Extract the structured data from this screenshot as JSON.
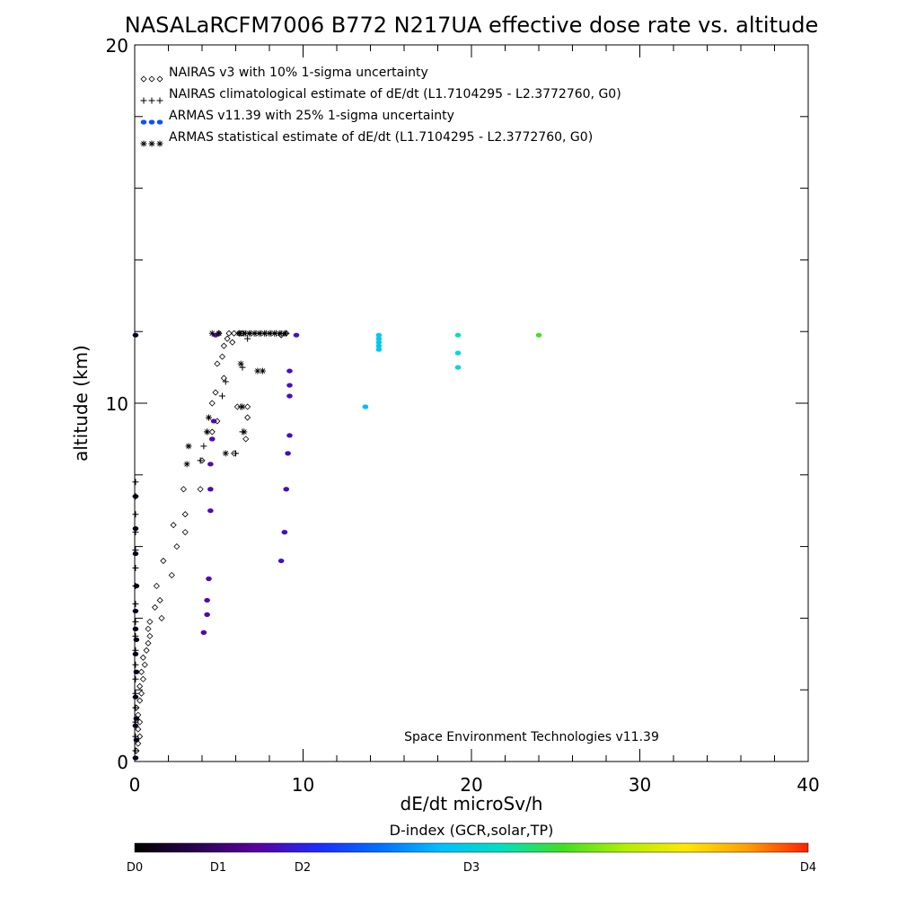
{
  "chart_data": {
    "type": "scatter",
    "title": "NASALaRCFM7006  B772 N217UA effective dose rate vs. altitude",
    "xlabel": "dE/dt microSv/h",
    "ylabel": "altitude (km)",
    "xlim": [
      0,
      40
    ],
    "ylim": [
      0,
      20
    ],
    "x_ticks": [
      "0",
      "10",
      "20",
      "30",
      "40"
    ],
    "y_ticks": [
      "0",
      "10",
      "20"
    ],
    "grid": false,
    "legend_position": "top-left",
    "annotation": "Space Environment Technologies v11.39",
    "colorbar": {
      "title": "D-index (GCR,solar,TP)",
      "labels": [
        {
          "label": "D0",
          "value": 0
        },
        {
          "label": "D1",
          "value": 1
        },
        {
          "label": "D2",
          "value": 2
        },
        {
          "label": "D3",
          "value": 3
        },
        {
          "label": "D4",
          "value": 4
        }
      ],
      "stops": [
        "#000000",
        "#2a0050",
        "#5a00a0",
        "#1e2bff",
        "#0070ff",
        "#00c0ff",
        "#00e0c0",
        "#40e020",
        "#b0f000",
        "#ffe800",
        "#ffa000",
        "#ff2000"
      ]
    },
    "series": [
      {
        "name": "NAIRAS v3 with 10% 1-sigma uncertainty",
        "marker": "diamond",
        "color": "#000000",
        "points": [
          [
            0.1,
            0.3
          ],
          [
            0.2,
            0.5
          ],
          [
            0.3,
            0.7
          ],
          [
            0.2,
            0.9
          ],
          [
            0.3,
            1.1
          ],
          [
            0.2,
            1.3
          ],
          [
            0.1,
            1.5
          ],
          [
            0.3,
            1.7
          ],
          [
            0.4,
            1.9
          ],
          [
            0.3,
            2.1
          ],
          [
            0.5,
            2.3
          ],
          [
            0.4,
            2.5
          ],
          [
            0.6,
            2.7
          ],
          [
            0.5,
            2.9
          ],
          [
            0.7,
            3.1
          ],
          [
            0.8,
            3.3
          ],
          [
            0.9,
            3.5
          ],
          [
            0.8,
            3.7
          ],
          [
            0.9,
            3.9
          ],
          [
            1.6,
            4.0
          ],
          [
            1.2,
            4.3
          ],
          [
            1.5,
            4.5
          ],
          [
            1.3,
            4.9
          ],
          [
            2.2,
            5.2
          ],
          [
            1.7,
            5.6
          ],
          [
            2.5,
            6.0
          ],
          [
            3.0,
            6.4
          ],
          [
            2.3,
            6.6
          ],
          [
            3.0,
            6.9
          ],
          [
            2.9,
            7.6
          ],
          [
            3.9,
            7.6
          ],
          [
            4.0,
            8.4
          ],
          [
            4.6,
            9.2
          ],
          [
            4.9,
            9.5
          ],
          [
            4.6,
            10.0
          ],
          [
            4.8,
            10.3
          ],
          [
            5.3,
            10.7
          ],
          [
            4.9,
            11.1
          ],
          [
            5.2,
            11.3
          ],
          [
            5.3,
            11.6
          ],
          [
            5.5,
            11.8
          ],
          [
            5.6,
            11.95
          ],
          [
            5.9,
            11.95
          ],
          [
            6.2,
            11.95
          ],
          [
            6.4,
            11.95
          ],
          [
            5.0,
            11.95
          ],
          [
            5.8,
            11.7
          ],
          [
            6.7,
            9.6
          ],
          [
            5.9,
            8.6
          ],
          [
            6.6,
            9.0
          ],
          [
            6.1,
            9.9
          ],
          [
            6.7,
            9.9
          ],
          [
            8.7,
            11.9
          ],
          [
            9.0,
            11.95
          ]
        ]
      },
      {
        "name": "NAIRAS climatological estimate of dE/dt (L1.7104295 - L2.3772760, G0)",
        "marker": "plus",
        "color": "#000000",
        "points": [
          [
            0.05,
            0.3
          ],
          [
            0.05,
            0.7
          ],
          [
            0.05,
            1.1
          ],
          [
            0.05,
            1.5
          ],
          [
            0.05,
            1.9
          ],
          [
            0.05,
            2.3
          ],
          [
            0.05,
            2.7
          ],
          [
            0.05,
            3.1
          ],
          [
            0.05,
            3.5
          ],
          [
            0.05,
            3.9
          ],
          [
            0.05,
            4.4
          ],
          [
            0.05,
            4.9
          ],
          [
            0.05,
            5.4
          ],
          [
            0.05,
            5.9
          ],
          [
            0.05,
            6.4
          ],
          [
            0.05,
            6.9
          ],
          [
            0.05,
            7.4
          ],
          [
            0.05,
            7.8
          ],
          [
            3.9,
            8.4
          ],
          [
            4.1,
            8.8
          ],
          [
            4.3,
            9.2
          ],
          [
            4.4,
            9.6
          ],
          [
            5.2,
            10.2
          ],
          [
            5.4,
            10.6
          ],
          [
            6.3,
            9.9
          ],
          [
            6.4,
            9.2
          ],
          [
            6.0,
            8.6
          ],
          [
            6.4,
            11.0
          ],
          [
            6.7,
            11.8
          ],
          [
            6.3,
            11.95
          ],
          [
            6.6,
            11.95
          ],
          [
            6.9,
            11.95
          ],
          [
            7.2,
            11.95
          ],
          [
            7.5,
            11.95
          ],
          [
            7.8,
            11.95
          ],
          [
            8.1,
            11.95
          ],
          [
            8.4,
            11.95
          ],
          [
            8.7,
            11.95
          ],
          [
            9.0,
            11.95
          ]
        ]
      },
      {
        "name": "ARMAS v11.39 with 25% 1-sigma uncertainty",
        "marker": "dot",
        "color": "#0a50ff",
        "points": [
          [
            0.05,
            0.1,
            0.1
          ],
          [
            0.1,
            0.6,
            0.1
          ],
          [
            0.05,
            1.0,
            0.15
          ],
          [
            0.1,
            1.2,
            0.1
          ],
          [
            0.05,
            1.8,
            0.1
          ],
          [
            0.1,
            2.5,
            0.15
          ],
          [
            0.05,
            3.0,
            0.1
          ],
          [
            0.1,
            3.4,
            0.1
          ],
          [
            0.05,
            3.7,
            0.15
          ],
          [
            0.05,
            4.2,
            0.1
          ],
          [
            0.1,
            4.9,
            0.1
          ],
          [
            0.05,
            5.8,
            0.15
          ],
          [
            0.05,
            6.5,
            0.1
          ],
          [
            0.05,
            7.4,
            0.1
          ],
          [
            0.05,
            11.9,
            0.15
          ],
          [
            4.1,
            3.6,
            0.75
          ],
          [
            4.3,
            4.1,
            0.75
          ],
          [
            4.3,
            4.5,
            0.8
          ],
          [
            4.4,
            5.1,
            0.8
          ],
          [
            4.5,
            7.0,
            0.8
          ],
          [
            4.5,
            7.6,
            0.8
          ],
          [
            4.5,
            8.3,
            0.8
          ],
          [
            4.6,
            9.0,
            0.8
          ],
          [
            4.7,
            9.5,
            0.8
          ],
          [
            4.8,
            11.9,
            0.8
          ],
          [
            8.7,
            5.6,
            0.85
          ],
          [
            8.9,
            6.4,
            0.85
          ],
          [
            9.0,
            7.6,
            0.85
          ],
          [
            9.1,
            8.6,
            0.85
          ],
          [
            9.2,
            9.1,
            0.85
          ],
          [
            9.2,
            10.2,
            0.85
          ],
          [
            9.2,
            10.5,
            0.85
          ],
          [
            9.2,
            10.9,
            0.85
          ],
          [
            9.6,
            11.9,
            0.85
          ],
          [
            13.7,
            9.9,
            1.8
          ],
          [
            14.5,
            11.9,
            1.9
          ],
          [
            14.5,
            11.8,
            1.9
          ],
          [
            14.5,
            11.7,
            1.9
          ],
          [
            14.5,
            11.6,
            1.9
          ],
          [
            14.5,
            11.5,
            1.9
          ],
          [
            19.2,
            11.0,
            2.1
          ],
          [
            19.2,
            11.4,
            2.1
          ],
          [
            19.2,
            11.9,
            2.2
          ],
          [
            24.0,
            11.9,
            2.55
          ]
        ]
      },
      {
        "name": "ARMAS statistical estimate of dE/dt (L1.7104295 - L2.3772760, G0)",
        "marker": "asterisk",
        "color": "#000000",
        "points": [
          [
            3.2,
            8.8
          ],
          [
            3.1,
            8.3
          ],
          [
            4.3,
            9.2
          ],
          [
            4.4,
            9.6
          ],
          [
            5.4,
            8.6
          ],
          [
            6.4,
            9.9
          ],
          [
            6.5,
            9.2
          ],
          [
            7.3,
            10.9
          ],
          [
            7.6,
            10.9
          ],
          [
            6.3,
            11.1
          ],
          [
            6.2,
            11.95
          ],
          [
            6.5,
            11.95
          ],
          [
            6.8,
            11.95
          ],
          [
            7.1,
            11.95
          ],
          [
            7.4,
            11.95
          ],
          [
            7.7,
            11.95
          ],
          [
            8.0,
            11.95
          ],
          [
            8.3,
            11.95
          ],
          [
            8.6,
            11.95
          ],
          [
            8.9,
            11.95
          ],
          [
            4.6,
            11.95
          ],
          [
            5.0,
            11.95
          ]
        ]
      }
    ]
  }
}
